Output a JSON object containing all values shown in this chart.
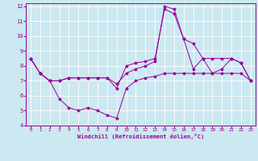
{
  "xlabel": "Windchill (Refroidissement éolien,°C)",
  "background_color": "#cce8f0",
  "line_color": "#990099",
  "grid_color": "#ffffff",
  "xlim": [
    -0.5,
    23.5
  ],
  "ylim": [
    4,
    12.2
  ],
  "yticks": [
    4,
    5,
    6,
    7,
    8,
    9,
    10,
    11,
    12
  ],
  "xticks": [
    0,
    1,
    2,
    3,
    4,
    5,
    6,
    7,
    8,
    9,
    10,
    11,
    12,
    13,
    14,
    15,
    16,
    17,
    18,
    19,
    20,
    21,
    22,
    23
  ],
  "series": [
    [
      8.5,
      7.5,
      7.0,
      7.0,
      7.2,
      7.2,
      7.2,
      7.2,
      7.2,
      6.5,
      8.0,
      8.2,
      8.3,
      8.5,
      11.8,
      11.5,
      9.8,
      9.5,
      8.5,
      7.5,
      7.8,
      8.5,
      8.2,
      7.0
    ],
    [
      8.5,
      7.5,
      7.0,
      7.0,
      7.2,
      7.2,
      7.2,
      7.2,
      7.2,
      6.8,
      7.5,
      7.8,
      8.0,
      8.3,
      12.0,
      11.8,
      9.8,
      7.8,
      8.5,
      8.5,
      8.5,
      8.5,
      8.2,
      7.0
    ],
    [
      8.5,
      7.5,
      7.0,
      5.8,
      5.2,
      5.0,
      5.2,
      5.0,
      4.7,
      4.5,
      6.5,
      7.0,
      7.2,
      7.3,
      7.5,
      7.5,
      7.5,
      7.5,
      7.5,
      7.5,
      7.5,
      7.5,
      7.5,
      7.0
    ]
  ]
}
